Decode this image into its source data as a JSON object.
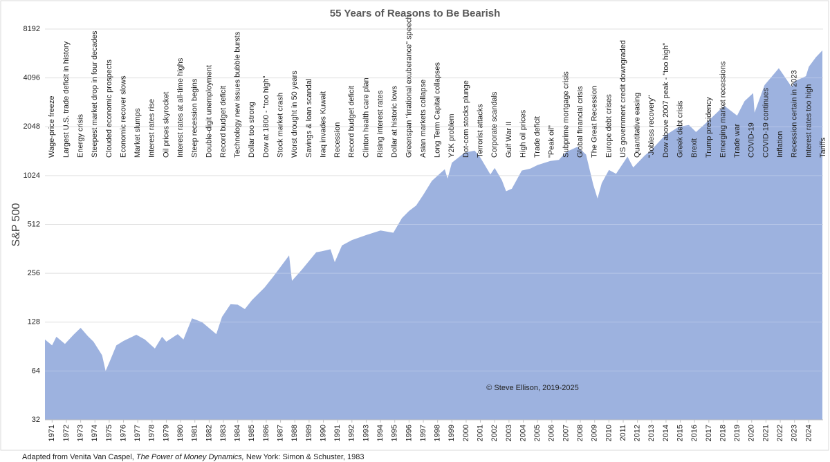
{
  "chart_data": {
    "type": "area",
    "title": "55 Years of Reasons to Be Bearish",
    "y_label": "S&P 500",
    "credit": "© Steve Ellison, 2019-2025",
    "source": [
      "Adapted from Venita Van Caspel,",
      "The Power of Money Dynamics,",
      "New York: Simon & Schuster, 1983"
    ],
    "color": "#9db2df",
    "yscale": "log",
    "grid": true,
    "ylim": [
      32,
      8192
    ],
    "yticks": [
      32,
      64,
      128,
      256,
      512,
      1024,
      2048,
      4096,
      8192
    ],
    "xlim": [
      1970.5,
      2025
    ],
    "xticks": [
      1971,
      1972,
      1973,
      1974,
      1975,
      1976,
      1977,
      1978,
      1979,
      1980,
      1981,
      1982,
      1983,
      1984,
      1985,
      1986,
      1987,
      1988,
      1989,
      1990,
      1991,
      1992,
      1993,
      1994,
      1995,
      1996,
      1997,
      1998,
      1999,
      2000,
      2001,
      2002,
      2003,
      2004,
      2005,
      2006,
      2007,
      2008,
      2009,
      2010,
      2011,
      2012,
      2013,
      2014,
      2015,
      2016,
      2017,
      2018,
      2019,
      2020,
      2021,
      2022,
      2023,
      2024
    ],
    "x": [
      1970.5,
      1971.0,
      1971.3,
      1971.9,
      1972.5,
      1973.0,
      1973.5,
      1973.9,
      1974.5,
      1974.75,
      1975.0,
      1975.5,
      1976.0,
      1976.9,
      1977.5,
      1978.2,
      1978.7,
      1979.0,
      1979.8,
      1980.2,
      1980.8,
      1981.5,
      1982.5,
      1982.9,
      1983.5,
      1984.0,
      1984.5,
      1985.0,
      1985.9,
      1986.5,
      1987.6,
      1987.8,
      1988.5,
      1989.5,
      1989.9,
      1990.5,
      1990.8,
      1991.3,
      1992.0,
      1993.0,
      1994.0,
      1994.9,
      1995.5,
      1996.0,
      1996.5,
      1997.0,
      1997.6,
      1998.5,
      1998.7,
      1999.0,
      1999.9,
      2000.6,
      2001.0,
      2001.7,
      2002.0,
      2002.5,
      2002.8,
      2003.2,
      2003.9,
      2004.5,
      2005.0,
      2005.9,
      2006.5,
      2007.0,
      2007.8,
      2008.4,
      2008.9,
      2009.2,
      2009.5,
      2010.0,
      2010.5,
      2011.3,
      2011.7,
      2012.5,
      2013.0,
      2013.9,
      2014.9,
      2015.6,
      2016.1,
      2016.9,
      2017.9,
      2018.1,
      2018.98,
      2019.5,
      2020.1,
      2020.2,
      2020.9,
      2021.9,
      2022.8,
      2023.0,
      2023.8,
      2024.0,
      2024.5,
      2024.95
    ],
    "values": [
      100,
      92,
      104,
      94,
      107,
      118,
      105,
      97,
      80,
      64,
      72,
      92,
      98,
      107,
      100,
      88,
      104,
      97,
      108,
      100,
      135,
      128,
      108,
      138,
      165,
      164,
      154,
      175,
      210,
      245,
      330,
      230,
      270,
      345,
      350,
      360,
      300,
      380,
      410,
      440,
      470,
      455,
      560,
      620,
      670,
      780,
      950,
      1120,
      980,
      1230,
      1420,
      1460,
      1320,
      1040,
      1140,
      960,
      820,
      850,
      1100,
      1130,
      1190,
      1260,
      1280,
      1430,
      1540,
      1380,
      900,
      740,
      920,
      1110,
      1050,
      1340,
      1150,
      1360,
      1480,
      1800,
      2050,
      2100,
      1900,
      2200,
      2670,
      2750,
      2400,
      2950,
      3300,
      2500,
      3700,
      4700,
      3600,
      3900,
      4200,
      4800,
      5500,
      6050
    ],
    "annotations": [
      {
        "text": "Wage-price freeze",
        "x": 1971
      },
      {
        "text": "Largest U.S. trade deficit in history",
        "x": 1972
      },
      {
        "text": "Energy crisis",
        "x": 1973
      },
      {
        "text": "Steepest market drop in four decades",
        "x": 1974
      },
      {
        "text": "Clouded economic prospects",
        "x": 1975
      },
      {
        "text": "Economic recover slows",
        "x": 1976
      },
      {
        "text": "Market slumps",
        "x": 1977
      },
      {
        "text": "Interest rates rise",
        "x": 1978
      },
      {
        "text": "Oil prices skyrocket",
        "x": 1979
      },
      {
        "text": "Interest rates at all-time highs",
        "x": 1980
      },
      {
        "text": "Steep recession begins",
        "x": 1981
      },
      {
        "text": "Double-digit unemployment",
        "x": 1982
      },
      {
        "text": "Record budget deficit",
        "x": 1983
      },
      {
        "text": "Technology new issues bubble bursts",
        "x": 1984
      },
      {
        "text": "Dollar too strong",
        "x": 1985
      },
      {
        "text": "Dow at 1800 - \"too high\"",
        "x": 1986
      },
      {
        "text": "Stock market crash",
        "x": 1987
      },
      {
        "text": "Worst drought in 50 years",
        "x": 1988
      },
      {
        "text": "Savings & loan scandal",
        "x": 1989
      },
      {
        "text": "Iraq invades Kuwait",
        "x": 1990
      },
      {
        "text": "Recession",
        "x": 1991
      },
      {
        "text": "Record budget deficit",
        "x": 1992
      },
      {
        "text": "Clinton health care plan",
        "x": 1993
      },
      {
        "text": "Rising interest rates",
        "x": 1994
      },
      {
        "text": "Dollar at historic lows",
        "x": 1995
      },
      {
        "text": "Greenspan \"irrational exuberance\" speech",
        "x": 1996
      },
      {
        "text": "Asian markets collapse",
        "x": 1997
      },
      {
        "text": "Long Term Capital collapses",
        "x": 1998
      },
      {
        "text": "Y2K problem",
        "x": 1999
      },
      {
        "text": "Dot-com stocks plunge",
        "x": 2000
      },
      {
        "text": "Terrorist attacks",
        "x": 2001
      },
      {
        "text": "Corporate scandals",
        "x": 2002
      },
      {
        "text": "Gulf War II",
        "x": 2003
      },
      {
        "text": "High oil prices",
        "x": 2004
      },
      {
        "text": "Trade deficit",
        "x": 2005
      },
      {
        "text": "\"Peak oil\"",
        "x": 2006
      },
      {
        "text": "Subprime mortgage crisis",
        "x": 2007
      },
      {
        "text": "Global financial crisis",
        "x": 2008
      },
      {
        "text": "The Great Recession",
        "x": 2009
      },
      {
        "text": "Europe debt crises",
        "x": 2010
      },
      {
        "text": "US government credit downgraded",
        "x": 2011
      },
      {
        "text": "Quantitative easing",
        "x": 2012
      },
      {
        "text": "\"Jobless recovery\"",
        "x": 2013
      },
      {
        "text": "Dow above 2007 peak - \"too high\"",
        "x": 2014
      },
      {
        "text": "Greek debt crisis",
        "x": 2015
      },
      {
        "text": "Brexit",
        "x": 2016
      },
      {
        "text": "Trump presidency",
        "x": 2017
      },
      {
        "text": "Emerging market recessions",
        "x": 2018
      },
      {
        "text": "Trade war",
        "x": 2019
      },
      {
        "text": "COVID-19",
        "x": 2020
      },
      {
        "text": "COVID-19 continues",
        "x": 2021
      },
      {
        "text": "Inflation",
        "x": 2022
      },
      {
        "text": "Recession certain in 2023",
        "x": 2023
      },
      {
        "text": "Interest rates too high",
        "x": 2024
      },
      {
        "text": "Tariffs",
        "x": 2025
      }
    ]
  }
}
